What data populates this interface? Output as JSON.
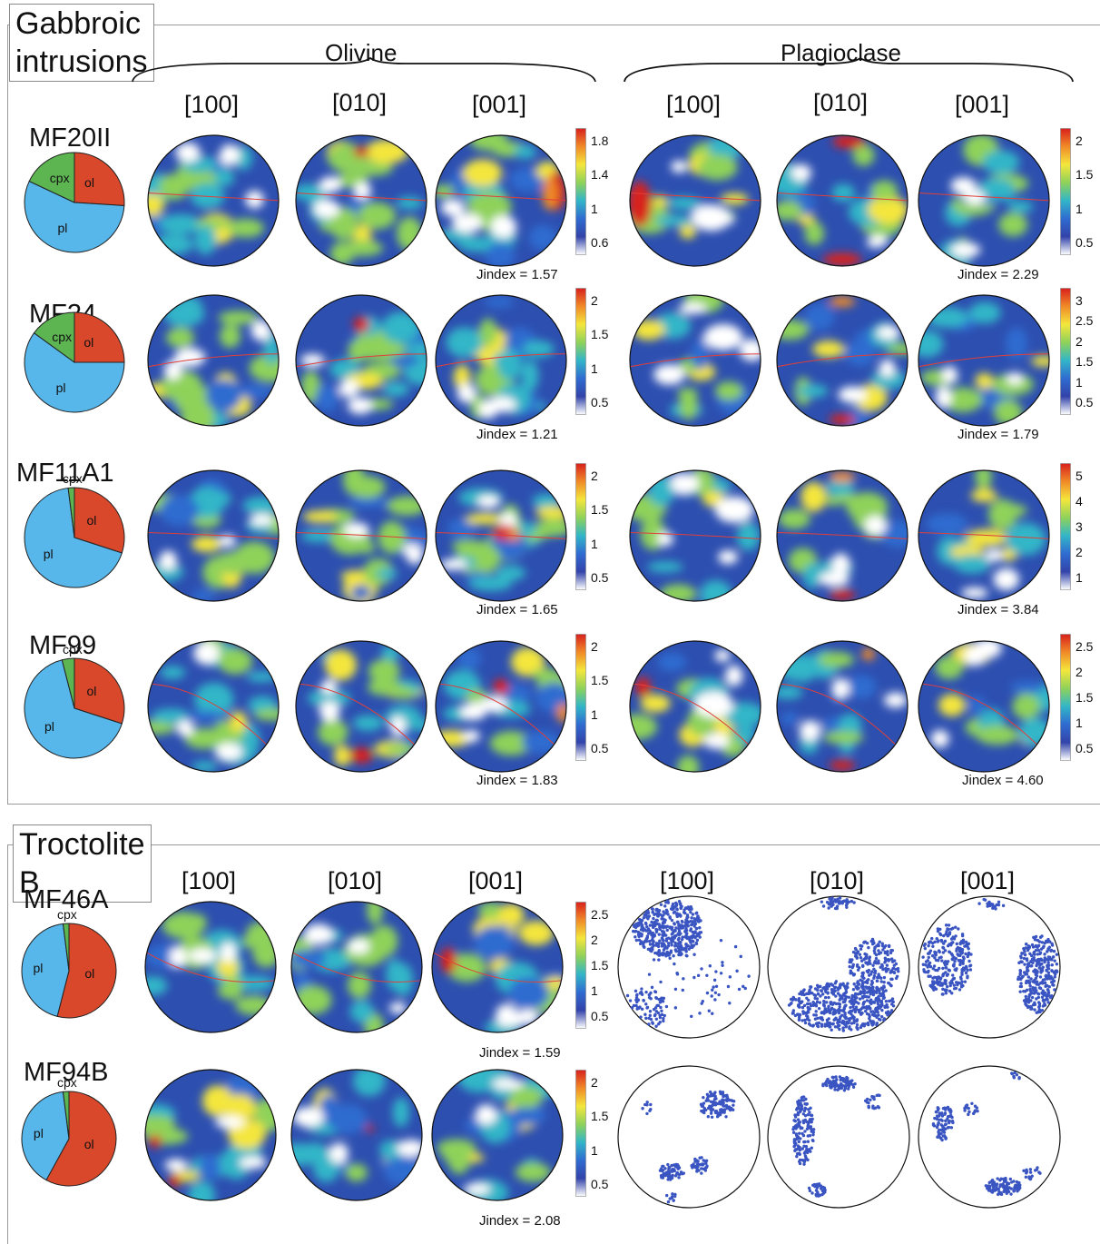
{
  "sections": [
    {
      "title": "Gabbroic intrusions",
      "phase_headers": [
        "Olivine",
        "Plagioclase"
      ],
      "axis_labels": [
        "[100]",
        "[010]",
        "[001]",
        "[100]",
        "[010]",
        "[001]"
      ],
      "samples": [
        {
          "name": "MF20II",
          "pie": [
            {
              "label": "ol",
              "fraction": 0.26,
              "color": "#d9482b"
            },
            {
              "label": "pl",
              "fraction": 0.56,
              "color": "#57b6ea"
            },
            {
              "label": "cpx",
              "fraction": 0.18,
              "color": "#5db552"
            }
          ],
          "olivine": {
            "jindex": "Jindex = 1.57",
            "colorbar_ticks": [
              "1.8",
              "1.4",
              "1",
              "0.6"
            ]
          },
          "plagioclase": {
            "jindex": "Jindex = 2.29",
            "colorbar_ticks": [
              "2",
              "1.5",
              "1",
              "0.5"
            ]
          }
        },
        {
          "name": "MF24",
          "pie": [
            {
              "label": "ol",
              "fraction": 0.25,
              "color": "#d9482b"
            },
            {
              "label": "pl",
              "fraction": 0.6,
              "color": "#57b6ea"
            },
            {
              "label": "cpx",
              "fraction": 0.15,
              "color": "#5db552"
            }
          ],
          "olivine": {
            "jindex": "Jindex = 1.21",
            "colorbar_ticks": [
              "2",
              "1.5",
              "1",
              "0.5"
            ]
          },
          "plagioclase": {
            "jindex": "Jindex = 1.79",
            "colorbar_ticks": [
              "3",
              "2.5",
              "2",
              "1.5",
              "1",
              "0.5"
            ]
          }
        },
        {
          "name": "MF11A1",
          "pie": [
            {
              "label": "ol",
              "fraction": 0.3,
              "color": "#d9482b"
            },
            {
              "label": "pl",
              "fraction": 0.68,
              "color": "#57b6ea"
            },
            {
              "label": "cpx",
              "fraction": 0.02,
              "color": "#5db552"
            }
          ],
          "olivine": {
            "jindex": "Jindex = 1.65",
            "colorbar_ticks": [
              "2",
              "1.5",
              "1",
              "0.5"
            ]
          },
          "plagioclase": {
            "jindex": "Jindex = 3.84",
            "colorbar_ticks": [
              "5",
              "4",
              "3",
              "2",
              "1"
            ]
          }
        },
        {
          "name": "MF99",
          "pie": [
            {
              "label": "ol",
              "fraction": 0.3,
              "color": "#d9482b"
            },
            {
              "label": "pl",
              "fraction": 0.66,
              "color": "#57b6ea"
            },
            {
              "label": "cpx",
              "fraction": 0.04,
              "color": "#5db552"
            }
          ],
          "olivine": {
            "jindex": "Jindex = 1.83",
            "colorbar_ticks": [
              "2",
              "1.5",
              "1",
              "0.5"
            ]
          },
          "plagioclase": {
            "jindex": "Jindex = 4.60",
            "colorbar_ticks": [
              "2.5",
              "2",
              "1.5",
              "1",
              "0.5"
            ]
          }
        }
      ]
    },
    {
      "title": "Troctolite B",
      "axis_labels": [
        "[100]",
        "[010]",
        "[001]",
        "[100]",
        "[010]",
        "[001]"
      ],
      "samples": [
        {
          "name": "MF46A",
          "pie": [
            {
              "label": "ol",
              "fraction": 0.54,
              "color": "#d9482b"
            },
            {
              "label": "pl",
              "fraction": 0.44,
              "color": "#57b6ea"
            },
            {
              "label": "cpx",
              "fraction": 0.02,
              "color": "#5db552"
            }
          ],
          "olivine": {
            "jindex": "Jindex = 1.59",
            "colorbar_ticks": [
              "2.5",
              "2",
              "1.5",
              "1",
              "0.5"
            ]
          }
        },
        {
          "name": "MF94B",
          "pie": [
            {
              "label": "ol",
              "fraction": 0.58,
              "color": "#d9482b"
            },
            {
              "label": "pl",
              "fraction": 0.4,
              "color": "#57b6ea"
            },
            {
              "label": "cpx",
              "fraction": 0.02,
              "color": "#5db552"
            }
          ],
          "olivine": {
            "jindex": "Jindex = 2.08",
            "colorbar_ticks": [
              "2",
              "1.5",
              "1",
              "0.5"
            ]
          }
        }
      ]
    }
  ],
  "colors": {
    "pole_figure_background": "#2d4fb0",
    "scatter_points": "#3a55c2",
    "colormap": [
      "#ffffff",
      "#3344aa",
      "#2f6cd0",
      "#33b6c8",
      "#8fd25a",
      "#f4e63c",
      "#f08a28",
      "#d8201c"
    ]
  }
}
